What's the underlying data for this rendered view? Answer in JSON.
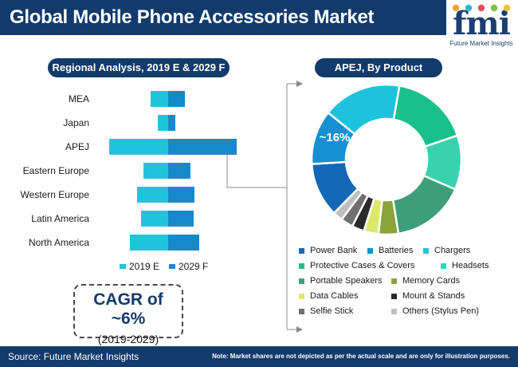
{
  "header": {
    "title": "Global Mobile Phone Accessories Market",
    "logo_text": "fmi",
    "logo_subtitle": "Future Market Insights",
    "logo_dot_colors": [
      "#f5a623",
      "#2fb6d6",
      "#e84a5f",
      "#7ac143",
      "#f4c430"
    ]
  },
  "left_panel": {
    "heading": "Regional Analysis, 2019 E & 2029 F"
  },
  "right_panel": {
    "heading": "APEJ, By Product"
  },
  "colors": {
    "navy": "#123a6b",
    "bar_2019": "#1fc4dc",
    "bar_2029": "#1688cc",
    "connector": "#8a8a8a"
  },
  "chart_data": [
    {
      "type": "bar",
      "orientation": "horizontal-diverging",
      "categories": [
        "MEA",
        "Japan",
        "APEJ",
        "Eastern Europe",
        "Western Europe",
        "Latin America",
        "North America"
      ],
      "series": [
        {
          "name": "2019 E",
          "values": [
            2.2,
            1.3,
            7.4,
            3.1,
            3.9,
            3.4,
            4.8
          ]
        },
        {
          "name": "2029 F",
          "values": [
            2.1,
            0.9,
            8.6,
            2.8,
            3.3,
            3.2,
            3.9
          ]
        }
      ],
      "legend": [
        "2019 E",
        "2029 F"
      ],
      "legend_position": "bottom",
      "grid": false
    },
    {
      "type": "pie",
      "subtype": "donut",
      "title": "APEJ, By Product",
      "categories": [
        "Power Bank",
        "Batteries",
        "Chargers",
        "Protective Cases & Covers",
        "Headsets",
        "Portable Speakers",
        "Memory Cards",
        "Data Cables",
        "Mount & Stands",
        "Selfie Stick",
        "Others (Stylus Pen)"
      ],
      "values": [
        {
          "category": "Protective Cases & Covers",
          "value": 16,
          "color": "#19c089"
        },
        {
          "category": "Headsets",
          "value": 11,
          "color": "#39d2ae"
        },
        {
          "category": "Portable Speakers",
          "value": 15,
          "color": "#3f9e7a"
        },
        {
          "category": "Memory Cards",
          "value": 4,
          "color": "#8aa33a"
        },
        {
          "category": "Data Cables",
          "value": 3,
          "color": "#dde96d"
        },
        {
          "category": "Mount & Stands",
          "value": 2.5,
          "color": "#2a2a2a"
        },
        {
          "category": "Selfie Stick",
          "value": 2.5,
          "color": "#707070"
        },
        {
          "category": "Others (Stylus Pen)",
          "value": 2,
          "color": "#bfbfbf"
        },
        {
          "category": "Power Bank",
          "value": 11,
          "color": "#1567b8"
        },
        {
          "category": "Batteries",
          "value": 11,
          "color": "#168fd3"
        },
        {
          "category": "Chargers",
          "value": 16,
          "color": "#1dc3dd"
        }
      ],
      "annotations": [
        "~16%"
      ],
      "legend_position": "bottom"
    }
  ],
  "legend_items": [
    {
      "label": "Power Bank",
      "color": "#1567b8"
    },
    {
      "label": "Batteries",
      "color": "#168fd3"
    },
    {
      "label": "Chargers",
      "color": "#1dc3dd"
    },
    {
      "label": "Protective Cases & Covers",
      "color": "#19c089"
    },
    {
      "label": "Headsets",
      "color": "#39d2ae"
    },
    {
      "label": "Portable Speakers",
      "color": "#3f9e7a"
    },
    {
      "label": "Memory Cards",
      "color": "#8aa33a"
    },
    {
      "label": "Data Cables",
      "color": "#dde96d"
    },
    {
      "label": "Mount & Stands",
      "color": "#2a2a2a"
    },
    {
      "label": "Selfie Stick",
      "color": "#707070"
    },
    {
      "label": "Others (Stylus Pen)",
      "color": "#bfbfbf"
    }
  ],
  "cagr": {
    "value": "CAGR of ~6%",
    "period": "(2019-2029)"
  },
  "footer": {
    "source": "Source: Future Market Insights",
    "note": "Note: Market shares are not depicted as per the actual scale and are only for illustration purposes."
  }
}
